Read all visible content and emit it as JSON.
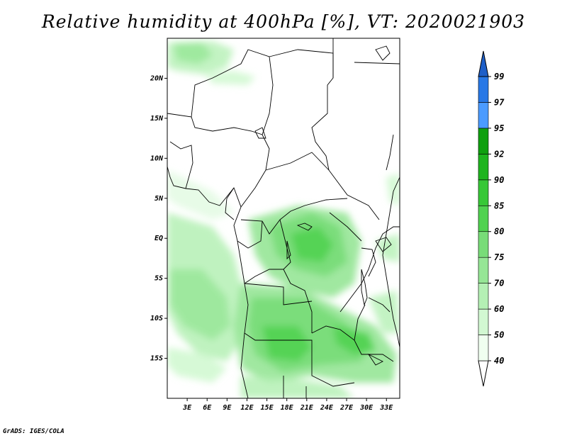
{
  "title": "Relative humidity at 400hPa [%], VT: 2020021903",
  "credit": "GrADS: IGES/COLA",
  "map": {
    "lon_range": [
      0,
      35
    ],
    "lat_range": [
      -20,
      25
    ],
    "lon_ticks": [
      "3E",
      "6E",
      "9E",
      "12E",
      "15E",
      "18E",
      "21E",
      "24E",
      "27E",
      "30E",
      "33E"
    ],
    "lat_ticks": [
      "20N",
      "15N",
      "10N",
      "5N",
      "EQ",
      "5S",
      "10S",
      "15S"
    ]
  },
  "colorbar": {
    "levels": [
      "40",
      "50",
      "60",
      "70",
      "75",
      "80",
      "85",
      "90",
      "92",
      "95",
      "97",
      "99"
    ],
    "colors": [
      "#f0fff0",
      "#d2f8d2",
      "#b4f0b4",
      "#96e696",
      "#78dc78",
      "#50d250",
      "#37c837",
      "#1eb41e",
      "#0fa00f",
      "#4b9bff",
      "#2878e6",
      "#1e5fc8"
    ]
  }
}
